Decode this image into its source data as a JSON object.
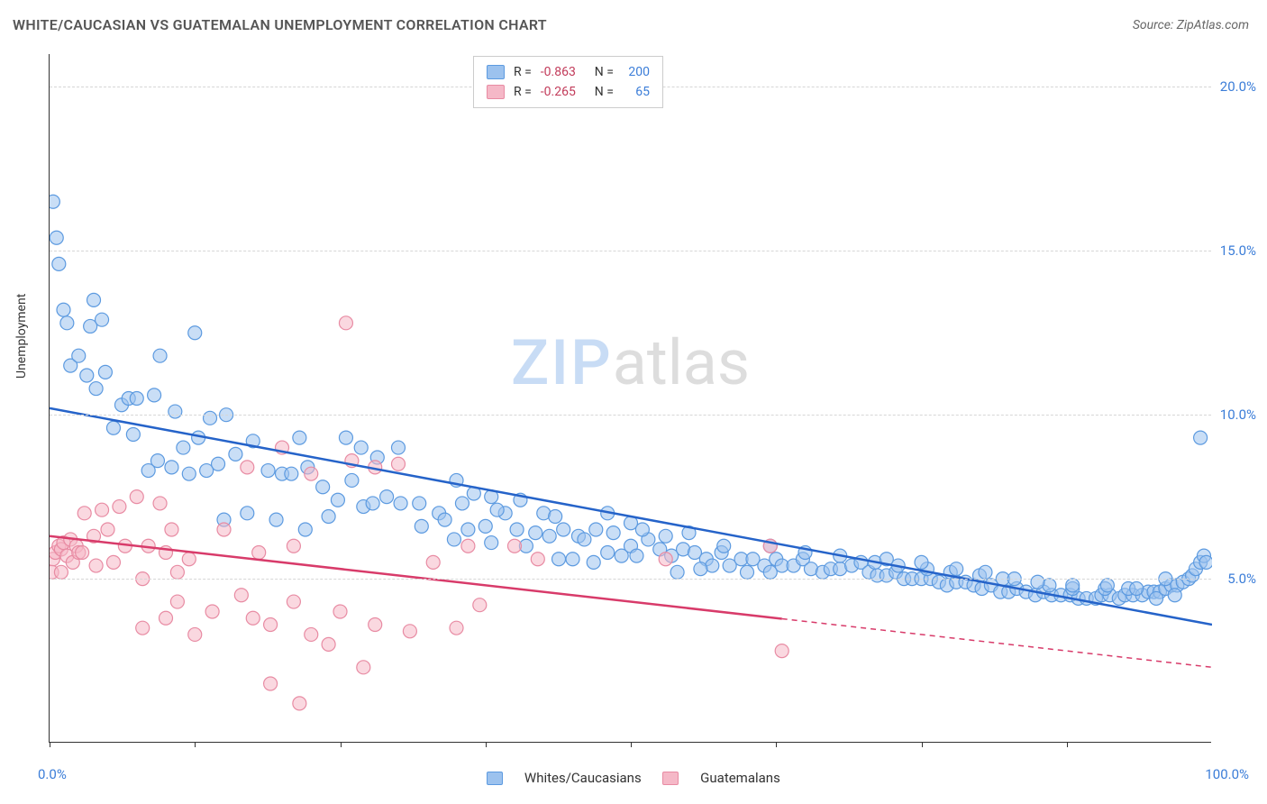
{
  "title": "WHITE/CAUCASIAN VS GUATEMALAN UNEMPLOYMENT CORRELATION CHART",
  "source": "Source: ZipAtlas.com",
  "ylabel": "Unemployment",
  "watermark": {
    "zip": "ZIP",
    "atlas": "atlas"
  },
  "chart": {
    "type": "scatter",
    "xlim": [
      0,
      100
    ],
    "ylim": [
      0,
      21
    ],
    "y_ticks": [
      5.0,
      10.0,
      15.0,
      20.0
    ],
    "y_tick_labels": [
      "5.0%",
      "10.0%",
      "15.0%",
      "20.0%"
    ],
    "x_tick_labels": {
      "left": "0.0%",
      "right": "100.0%"
    },
    "x_minor_ticks": [
      0,
      12.5,
      25,
      37.5,
      50,
      62.5,
      75,
      87.5
    ],
    "background_color": "#ffffff",
    "grid_color": "#d6d6d6",
    "axis_color": "#333333",
    "marker_radius": 7.5,
    "marker_opacity": 0.55,
    "line_width": 2.5,
    "series": [
      {
        "name": "Whites/Caucasians",
        "color_fill": "#9cc2ee",
        "color_stroke": "#5c9ae0",
        "line_color": "#2563c9",
        "R": "-0.863",
        "N": "200",
        "trend": {
          "x1": 0,
          "y1": 10.2,
          "x2": 100,
          "y2": 3.6,
          "dashed_from_x": null
        },
        "points": [
          [
            0.3,
            16.5
          ],
          [
            0.6,
            15.4
          ],
          [
            0.8,
            14.6
          ],
          [
            1.2,
            13.2
          ],
          [
            1.5,
            12.8
          ],
          [
            3.8,
            13.5
          ],
          [
            3.5,
            12.7
          ],
          [
            4.5,
            12.9
          ],
          [
            1.8,
            11.5
          ],
          [
            2.5,
            11.8
          ],
          [
            3.2,
            11.2
          ],
          [
            9.5,
            11.8
          ],
          [
            12.5,
            12.5
          ],
          [
            4.0,
            10.8
          ],
          [
            4.8,
            11.3
          ],
          [
            6.2,
            10.3
          ],
          [
            6.8,
            10.5
          ],
          [
            7.5,
            10.5
          ],
          [
            9.0,
            10.6
          ],
          [
            10.8,
            10.1
          ],
          [
            5.5,
            9.6
          ],
          [
            7.2,
            9.4
          ],
          [
            11.5,
            9.0
          ],
          [
            12.8,
            9.3
          ],
          [
            13.8,
            9.9
          ],
          [
            15.2,
            10.0
          ],
          [
            8.5,
            8.3
          ],
          [
            9.3,
            8.6
          ],
          [
            10.5,
            8.4
          ],
          [
            12.0,
            8.2
          ],
          [
            13.5,
            8.3
          ],
          [
            14.5,
            8.5
          ],
          [
            16.0,
            8.8
          ],
          [
            17.5,
            9.2
          ],
          [
            18.8,
            8.3
          ],
          [
            20.0,
            8.2
          ],
          [
            20.8,
            8.2
          ],
          [
            22.2,
            8.4
          ],
          [
            23.5,
            7.8
          ],
          [
            24.8,
            7.4
          ],
          [
            21.5,
            9.3
          ],
          [
            25.5,
            9.3
          ],
          [
            26.8,
            9.0
          ],
          [
            26.0,
            8.0
          ],
          [
            27.0,
            7.2
          ],
          [
            27.8,
            7.3
          ],
          [
            29.0,
            7.5
          ],
          [
            30.2,
            7.3
          ],
          [
            31.8,
            7.3
          ],
          [
            35.0,
            8.0
          ],
          [
            28.2,
            8.7
          ],
          [
            30.0,
            9.0
          ],
          [
            32.0,
            6.6
          ],
          [
            33.5,
            7.0
          ],
          [
            34.0,
            6.8
          ],
          [
            35.5,
            7.3
          ],
          [
            36.5,
            7.6
          ],
          [
            38.0,
            7.5
          ],
          [
            39.2,
            7.0
          ],
          [
            34.8,
            6.2
          ],
          [
            36.0,
            6.5
          ],
          [
            37.5,
            6.6
          ],
          [
            40.2,
            6.5
          ],
          [
            41.8,
            6.4
          ],
          [
            38.5,
            7.1
          ],
          [
            40.5,
            7.4
          ],
          [
            42.5,
            7.0
          ],
          [
            43.5,
            6.9
          ],
          [
            41.0,
            6.0
          ],
          [
            43.0,
            6.3
          ],
          [
            44.2,
            6.5
          ],
          [
            45.5,
            6.3
          ],
          [
            46.0,
            6.2
          ],
          [
            47.0,
            6.5
          ],
          [
            48.5,
            6.4
          ],
          [
            43.8,
            5.6
          ],
          [
            45.0,
            5.6
          ],
          [
            46.8,
            5.5
          ],
          [
            48.0,
            5.8
          ],
          [
            49.2,
            5.7
          ],
          [
            50.0,
            6.0
          ],
          [
            50.5,
            5.7
          ],
          [
            51.5,
            6.2
          ],
          [
            52.5,
            5.9
          ],
          [
            53.5,
            5.7
          ],
          [
            54.5,
            5.9
          ],
          [
            55.5,
            5.8
          ],
          [
            56.5,
            5.6
          ],
          [
            51.0,
            6.5
          ],
          [
            53.0,
            6.3
          ],
          [
            57.0,
            5.4
          ],
          [
            57.8,
            5.8
          ],
          [
            58.5,
            5.4
          ],
          [
            59.5,
            5.6
          ],
          [
            60.5,
            5.6
          ],
          [
            61.5,
            5.4
          ],
          [
            62.5,
            5.6
          ],
          [
            63.0,
            5.4
          ],
          [
            54.0,
            5.2
          ],
          [
            56.0,
            5.3
          ],
          [
            64.0,
            5.4
          ],
          [
            64.8,
            5.6
          ],
          [
            65.5,
            5.3
          ],
          [
            66.5,
            5.2
          ],
          [
            67.2,
            5.3
          ],
          [
            68.0,
            5.3
          ],
          [
            69.0,
            5.4
          ],
          [
            60.0,
            5.2
          ],
          [
            62.0,
            5.2
          ],
          [
            69.8,
            5.5
          ],
          [
            70.5,
            5.2
          ],
          [
            71.2,
            5.1
          ],
          [
            72.0,
            5.1
          ],
          [
            72.8,
            5.2
          ],
          [
            73.5,
            5.0
          ],
          [
            74.2,
            5.0
          ],
          [
            71.0,
            5.5
          ],
          [
            73.0,
            5.4
          ],
          [
            75.0,
            5.0
          ],
          [
            75.8,
            5.0
          ],
          [
            76.5,
            4.9
          ],
          [
            77.2,
            4.8
          ],
          [
            78.0,
            4.9
          ],
          [
            78.8,
            4.9
          ],
          [
            79.5,
            4.8
          ],
          [
            75.5,
            5.3
          ],
          [
            77.5,
            5.2
          ],
          [
            80.2,
            4.7
          ],
          [
            81.0,
            4.8
          ],
          [
            81.8,
            4.6
          ],
          [
            82.5,
            4.6
          ],
          [
            83.2,
            4.7
          ],
          [
            84.0,
            4.6
          ],
          [
            84.8,
            4.5
          ],
          [
            80.0,
            5.1
          ],
          [
            82.0,
            5.0
          ],
          [
            85.5,
            4.6
          ],
          [
            86.2,
            4.5
          ],
          [
            87.0,
            4.5
          ],
          [
            87.8,
            4.5
          ],
          [
            88.5,
            4.4
          ],
          [
            89.2,
            4.4
          ],
          [
            90.0,
            4.4
          ],
          [
            86.0,
            4.8
          ],
          [
            88.0,
            4.7
          ],
          [
            90.5,
            4.5
          ],
          [
            91.2,
            4.5
          ],
          [
            92.0,
            4.4
          ],
          [
            92.5,
            4.5
          ],
          [
            93.2,
            4.5
          ],
          [
            94.0,
            4.5
          ],
          [
            94.5,
            4.6
          ],
          [
            90.8,
            4.7
          ],
          [
            92.8,
            4.7
          ],
          [
            95.0,
            4.6
          ],
          [
            95.5,
            4.6
          ],
          [
            96.0,
            4.7
          ],
          [
            96.5,
            4.8
          ],
          [
            97.0,
            4.8
          ],
          [
            97.5,
            4.9
          ],
          [
            98.0,
            5.0
          ],
          [
            95.2,
            4.4
          ],
          [
            96.8,
            4.5
          ],
          [
            98.3,
            5.1
          ],
          [
            98.6,
            5.3
          ],
          [
            99.0,
            5.5
          ],
          [
            99.3,
            5.7
          ],
          [
            99.5,
            5.5
          ],
          [
            99.0,
            9.3
          ],
          [
            15.0,
            6.8
          ],
          [
            17.0,
            7.0
          ],
          [
            19.5,
            6.8
          ],
          [
            22.0,
            6.5
          ],
          [
            24.0,
            6.9
          ],
          [
            38.0,
            6.1
          ],
          [
            48.0,
            7.0
          ],
          [
            50.0,
            6.7
          ],
          [
            55.0,
            6.4
          ],
          [
            58.0,
            6.0
          ],
          [
            62.0,
            6.0
          ],
          [
            65.0,
            5.8
          ],
          [
            68.0,
            5.7
          ],
          [
            72.0,
            5.6
          ],
          [
            75.0,
            5.5
          ],
          [
            78.0,
            5.3
          ],
          [
            80.5,
            5.2
          ],
          [
            83.0,
            5.0
          ],
          [
            85.0,
            4.9
          ],
          [
            88.0,
            4.8
          ],
          [
            91.0,
            4.8
          ],
          [
            93.5,
            4.7
          ],
          [
            96.0,
            5.0
          ]
        ]
      },
      {
        "name": "Guatemalans",
        "color_fill": "#f5b8c7",
        "color_stroke": "#e88ba3",
        "line_color": "#d83b6a",
        "R": "-0.265",
        "N": "65",
        "trend": {
          "x1": 0,
          "y1": 6.3,
          "x2": 100,
          "y2": 2.3,
          "dashed_from_x": 63
        },
        "points": [
          [
            0.3,
            5.6
          ],
          [
            0.5,
            5.8
          ],
          [
            0.8,
            6.0
          ],
          [
            1.0,
            5.9
          ],
          [
            1.2,
            6.1
          ],
          [
            1.5,
            5.7
          ],
          [
            1.8,
            6.2
          ],
          [
            2.0,
            5.5
          ],
          [
            2.3,
            6.0
          ],
          [
            2.5,
            5.8
          ],
          [
            0.2,
            5.2
          ],
          [
            1.0,
            5.2
          ],
          [
            2.8,
            5.8
          ],
          [
            3.0,
            7.0
          ],
          [
            3.8,
            6.3
          ],
          [
            4.5,
            7.1
          ],
          [
            5.0,
            6.5
          ],
          [
            6.0,
            7.2
          ],
          [
            6.5,
            6.0
          ],
          [
            4.0,
            5.4
          ],
          [
            5.5,
            5.5
          ],
          [
            7.5,
            7.5
          ],
          [
            8.5,
            6.0
          ],
          [
            9.5,
            7.3
          ],
          [
            10.5,
            6.5
          ],
          [
            11.0,
            5.2
          ],
          [
            12.0,
            5.6
          ],
          [
            8.0,
            5.0
          ],
          [
            10.0,
            5.8
          ],
          [
            25.5,
            12.8
          ],
          [
            17.0,
            8.4
          ],
          [
            20.0,
            9.0
          ],
          [
            22.5,
            8.2
          ],
          [
            26.0,
            8.6
          ],
          [
            28.0,
            8.4
          ],
          [
            30.0,
            8.5
          ],
          [
            15.0,
            6.5
          ],
          [
            18.0,
            5.8
          ],
          [
            21.0,
            6.0
          ],
          [
            8.0,
            3.5
          ],
          [
            10.0,
            3.8
          ],
          [
            12.5,
            3.3
          ],
          [
            14.0,
            4.0
          ],
          [
            16.5,
            4.5
          ],
          [
            19.0,
            3.6
          ],
          [
            11.0,
            4.3
          ],
          [
            17.5,
            3.8
          ],
          [
            21.0,
            4.3
          ],
          [
            22.5,
            3.3
          ],
          [
            25.0,
            4.0
          ],
          [
            28.0,
            3.6
          ],
          [
            31.0,
            3.4
          ],
          [
            24.0,
            3.0
          ],
          [
            27.0,
            2.3
          ],
          [
            35.0,
            3.5
          ],
          [
            19.0,
            1.8
          ],
          [
            21.5,
            1.2
          ],
          [
            33.0,
            5.5
          ],
          [
            36.0,
            6.0
          ],
          [
            37.0,
            4.2
          ],
          [
            40.0,
            6.0
          ],
          [
            42.0,
            5.6
          ],
          [
            53.0,
            5.6
          ],
          [
            63.0,
            2.8
          ],
          [
            62.0,
            6.0
          ]
        ]
      }
    ]
  },
  "legend_bottom": [
    {
      "label": "Whites/Caucasians",
      "fill": "#9cc2ee",
      "stroke": "#5c9ae0"
    },
    {
      "label": "Guatemalans",
      "fill": "#f5b8c7",
      "stroke": "#e88ba3"
    }
  ]
}
